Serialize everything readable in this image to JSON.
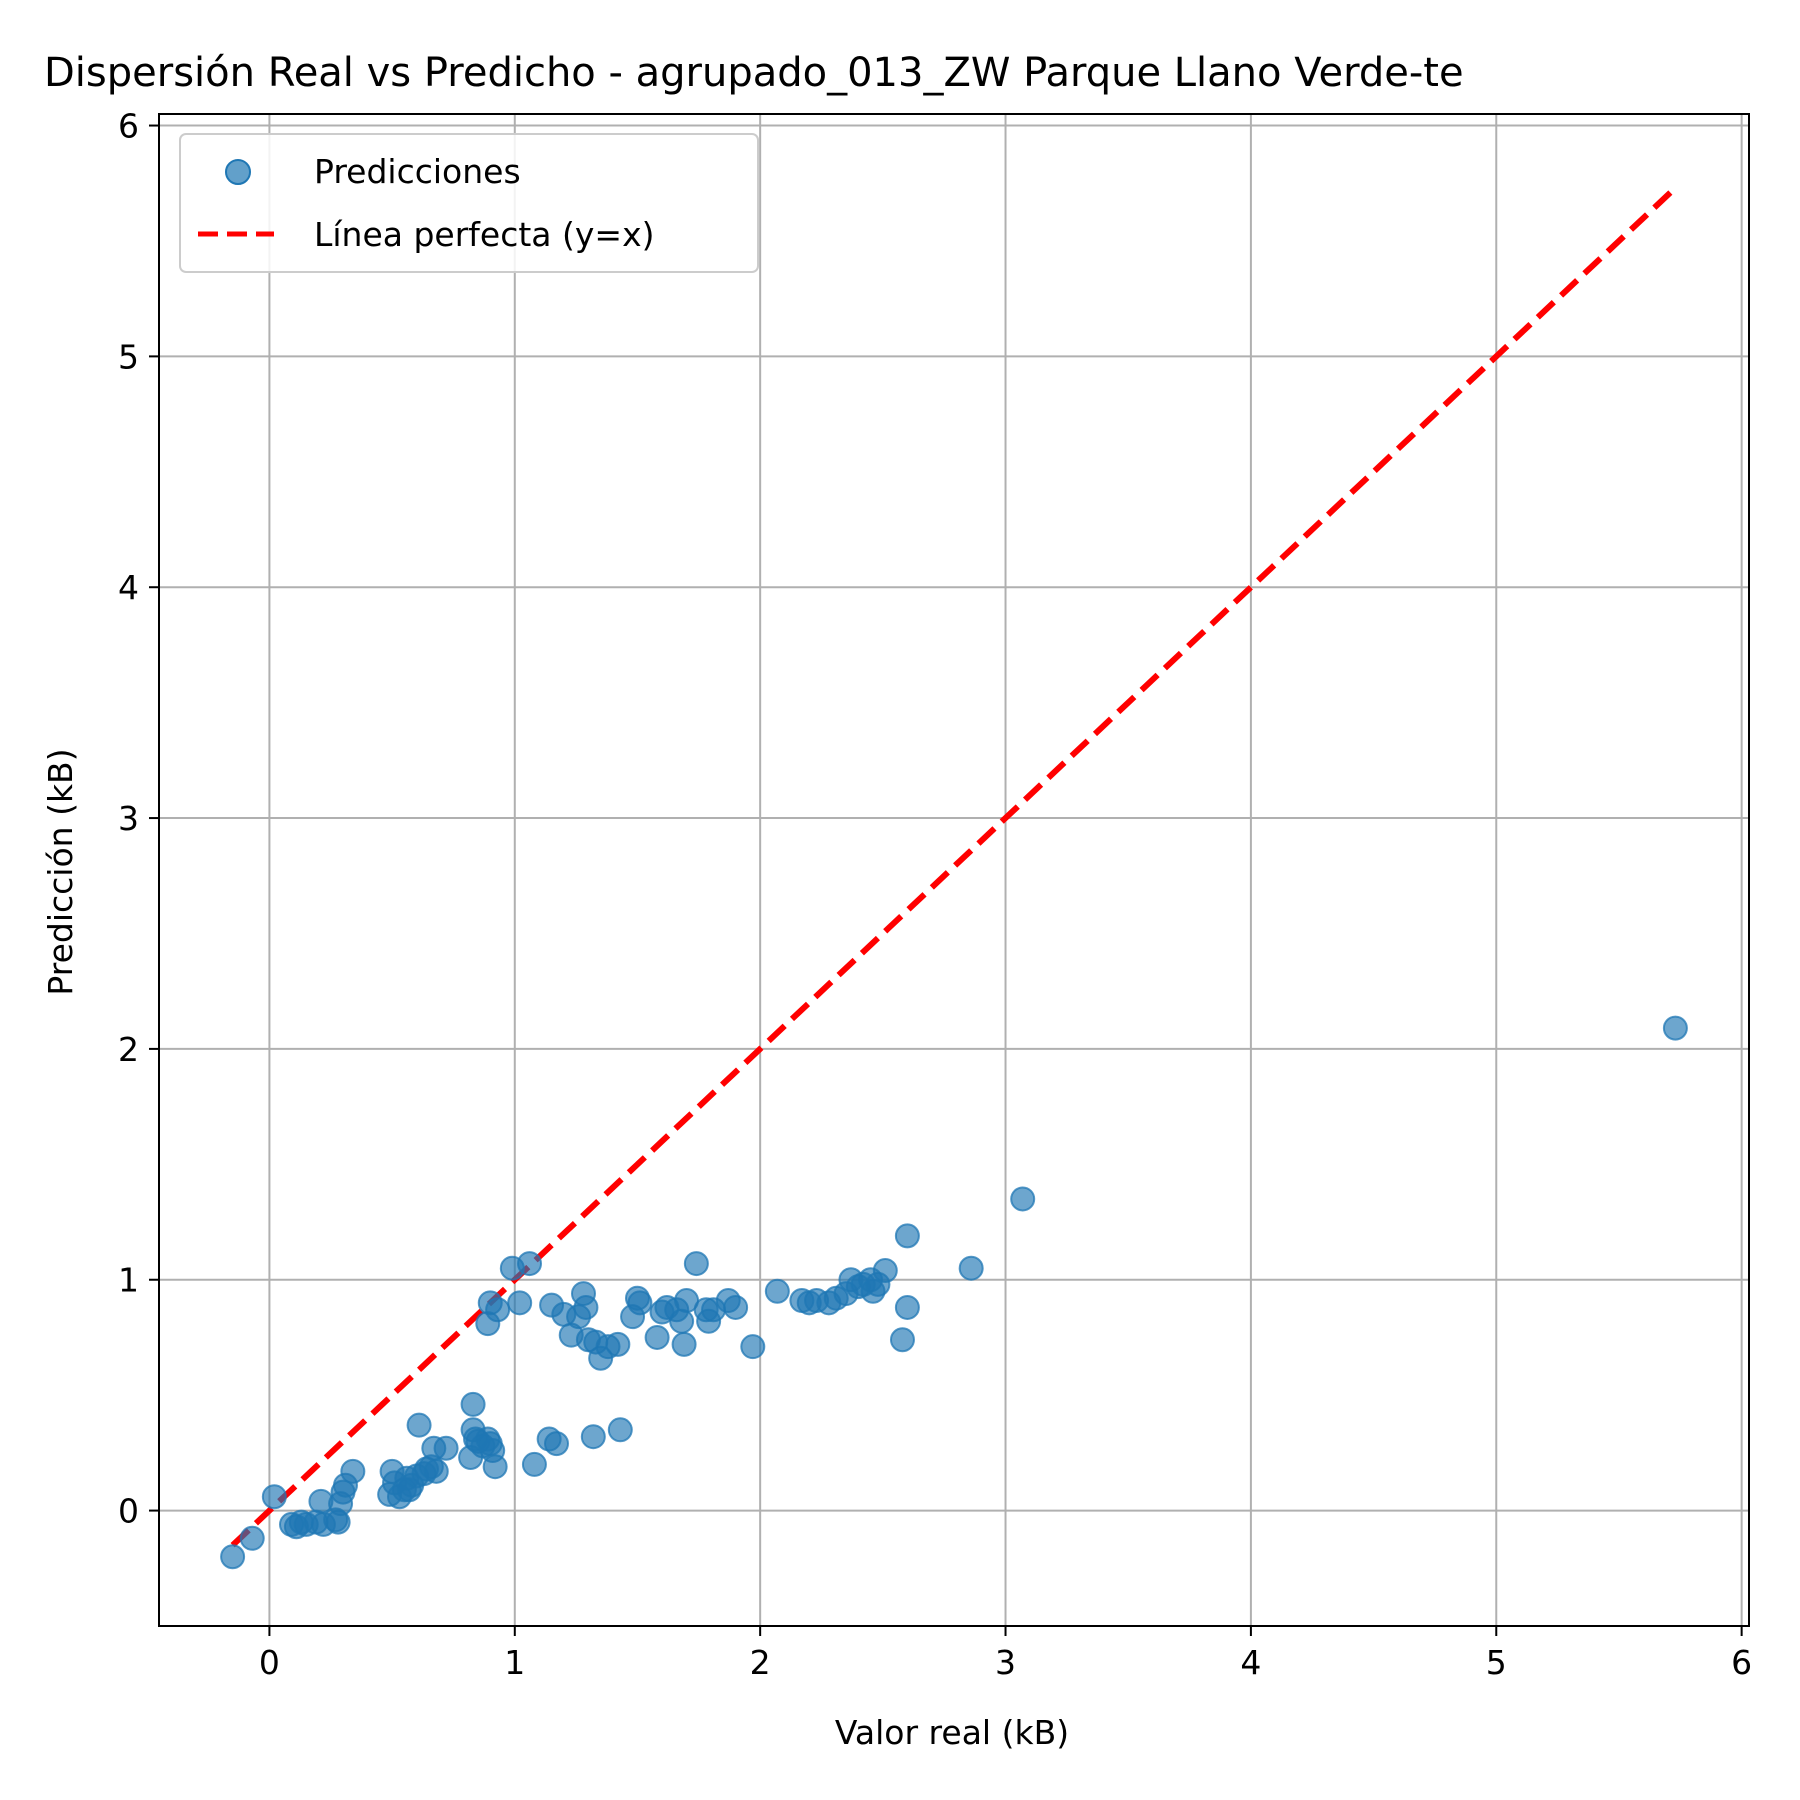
{
  "chart_data": {
    "type": "scatter",
    "title": "Dispersión Real vs Predicho - agrupado_013_ZW Parque Llano Verde-te",
    "xlabel": "Valor real (kB)",
    "ylabel": "Predicción (kB)",
    "xlim": [
      -0.45,
      6.03
    ],
    "ylim": [
      -0.5,
      6.05
    ],
    "xticks": [
      0,
      1,
      2,
      3,
      4,
      5,
      6
    ],
    "yticks": [
      0,
      1,
      2,
      3,
      4,
      5,
      6
    ],
    "grid": true,
    "legend_position": "top-left",
    "colors": {
      "points": "#1f77b4",
      "line": "#ff0000",
      "grid": "#b0b0b0"
    },
    "series": [
      {
        "name": "Predicciones",
        "kind": "scatter",
        "points": [
          [
            -0.15,
            -0.2
          ],
          [
            -0.07,
            -0.12
          ],
          [
            0.02,
            0.06
          ],
          [
            0.09,
            -0.06
          ],
          [
            0.11,
            -0.07
          ],
          [
            0.13,
            -0.05
          ],
          [
            0.15,
            -0.06
          ],
          [
            0.19,
            -0.05
          ],
          [
            0.21,
            0.04
          ],
          [
            0.22,
            -0.06
          ],
          [
            0.27,
            -0.04
          ],
          [
            0.28,
            -0.05
          ],
          [
            0.29,
            0.03
          ],
          [
            0.3,
            0.08
          ],
          [
            0.31,
            0.11
          ],
          [
            0.34,
            0.17
          ],
          [
            0.49,
            0.07
          ],
          [
            0.5,
            0.17
          ],
          [
            0.51,
            0.12
          ],
          [
            0.53,
            0.06
          ],
          [
            0.55,
            0.09
          ],
          [
            0.56,
            0.14
          ],
          [
            0.57,
            0.09
          ],
          [
            0.58,
            0.11
          ],
          [
            0.6,
            0.15
          ],
          [
            0.61,
            0.37
          ],
          [
            0.63,
            0.16
          ],
          [
            0.64,
            0.18
          ],
          [
            0.66,
            0.19
          ],
          [
            0.67,
            0.27
          ],
          [
            0.68,
            0.17
          ],
          [
            0.72,
            0.27
          ],
          [
            0.82,
            0.23
          ],
          [
            0.83,
            0.35
          ],
          [
            0.84,
            0.31
          ],
          [
            0.85,
            0.3
          ],
          [
            0.87,
            0.28
          ],
          [
            0.89,
            0.31
          ],
          [
            0.9,
            0.29
          ],
          [
            0.91,
            0.26
          ],
          [
            0.92,
            0.19
          ],
          [
            0.83,
            0.46
          ],
          [
            0.89,
            0.81
          ],
          [
            0.9,
            0.9
          ],
          [
            0.93,
            0.87
          ],
          [
            0.99,
            1.05
          ],
          [
            1.02,
            0.9
          ],
          [
            1.06,
            1.07
          ],
          [
            1.08,
            0.2
          ],
          [
            1.14,
            0.31
          ],
          [
            1.15,
            0.89
          ],
          [
            1.17,
            0.29
          ],
          [
            1.2,
            0.85
          ],
          [
            1.23,
            0.76
          ],
          [
            1.26,
            0.84
          ],
          [
            1.28,
            0.94
          ],
          [
            1.29,
            0.88
          ],
          [
            1.3,
            0.74
          ],
          [
            1.32,
            0.32
          ],
          [
            1.33,
            0.73
          ],
          [
            1.35,
            0.66
          ],
          [
            1.38,
            0.71
          ],
          [
            1.42,
            0.72
          ],
          [
            1.43,
            0.35
          ],
          [
            1.48,
            0.84
          ],
          [
            1.5,
            0.92
          ],
          [
            1.51,
            0.9
          ],
          [
            1.58,
            0.75
          ],
          [
            1.6,
            0.86
          ],
          [
            1.62,
            0.88
          ],
          [
            1.66,
            0.87
          ],
          [
            1.68,
            0.82
          ],
          [
            1.69,
            0.72
          ],
          [
            1.7,
            0.91
          ],
          [
            1.74,
            1.07
          ],
          [
            1.78,
            0.87
          ],
          [
            1.79,
            0.82
          ],
          [
            1.81,
            0.87
          ],
          [
            1.87,
            0.91
          ],
          [
            1.9,
            0.88
          ],
          [
            1.97,
            0.71
          ],
          [
            2.07,
            0.95
          ],
          [
            2.17,
            0.91
          ],
          [
            2.2,
            0.9
          ],
          [
            2.23,
            0.91
          ],
          [
            2.28,
            0.9
          ],
          [
            2.31,
            0.92
          ],
          [
            2.35,
            0.94
          ],
          [
            2.37,
            1.0
          ],
          [
            2.4,
            0.97
          ],
          [
            2.42,
            0.98
          ],
          [
            2.45,
            1.0
          ],
          [
            2.46,
            0.95
          ],
          [
            2.48,
            0.98
          ],
          [
            2.51,
            1.04
          ],
          [
            2.58,
            0.74
          ],
          [
            2.6,
            0.88
          ],
          [
            2.6,
            1.19
          ],
          [
            2.86,
            1.05
          ],
          [
            3.07,
            1.35
          ],
          [
            5.73,
            2.09
          ]
        ]
      },
      {
        "name": "Línea perfecta (y=x)",
        "kind": "line",
        "x": [
          -0.15,
          5.73
        ],
        "y": [
          -0.15,
          5.73
        ]
      }
    ]
  }
}
